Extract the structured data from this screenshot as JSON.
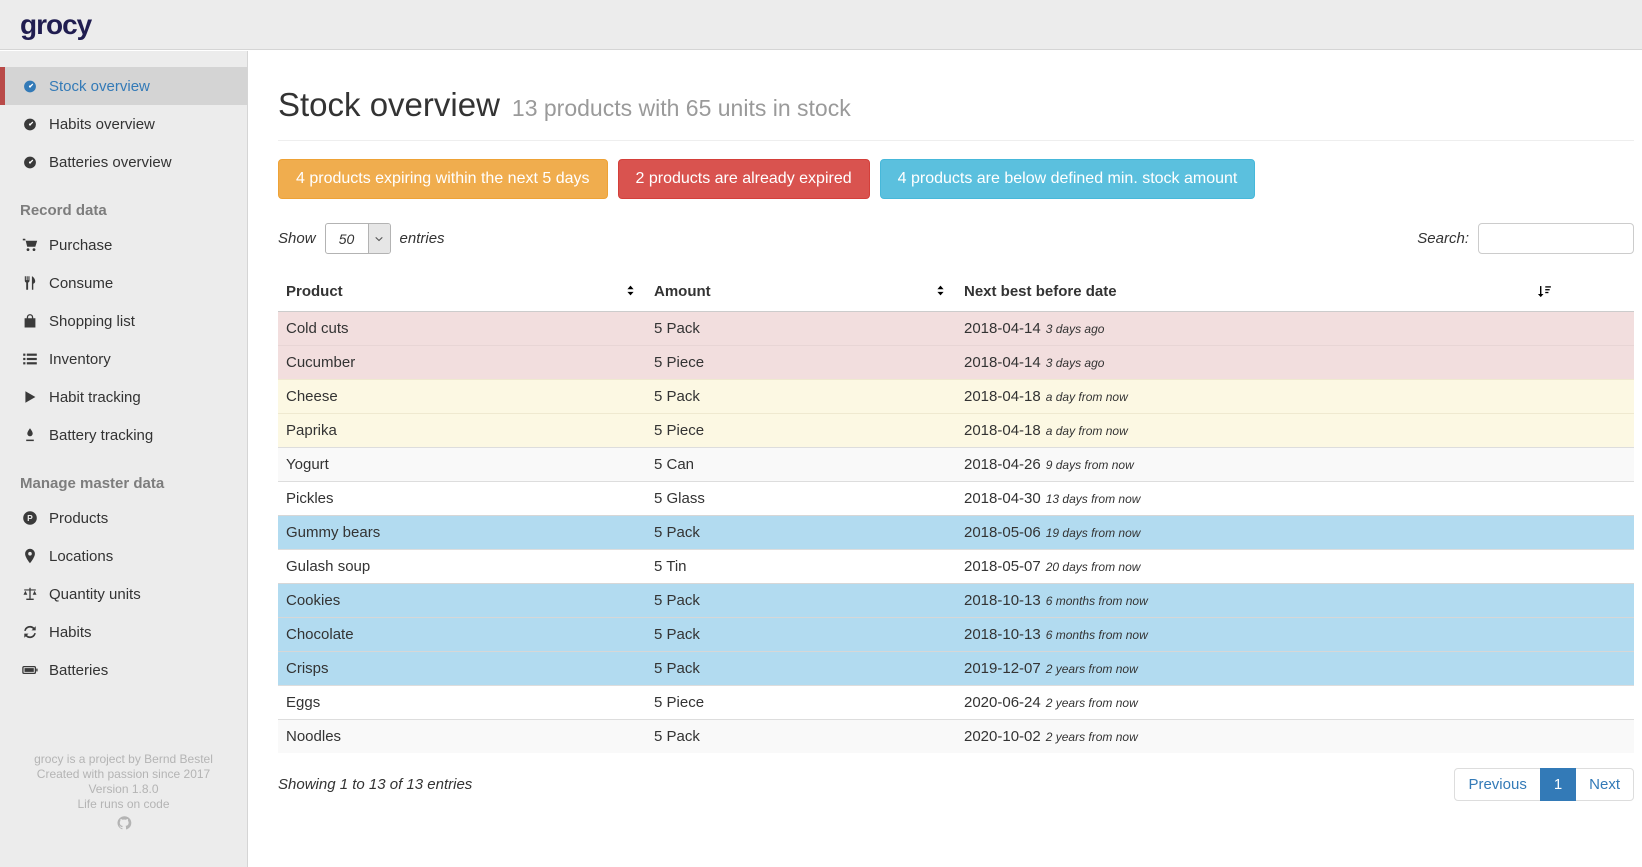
{
  "colors": {
    "link": "#337ab7",
    "warning": "#f0ad4e",
    "danger": "#d9534f",
    "info": "#5bc0de",
    "row_expired": "#f2dede",
    "row_expiring": "#fcf8e3",
    "row_below_min": "#b2dbf0",
    "active_item_border": "#b94a48"
  },
  "topbar": {
    "logo": "grocy"
  },
  "sidebar": {
    "groups": [
      {
        "header": "",
        "items": [
          {
            "label": "Stock overview",
            "icon": "tachometer",
            "active": true
          },
          {
            "label": "Habits overview",
            "icon": "tachometer",
            "active": false
          },
          {
            "label": "Batteries overview",
            "icon": "tachometer",
            "active": false
          }
        ]
      },
      {
        "header": "Record data",
        "items": [
          {
            "label": "Purchase",
            "icon": "shopping-cart",
            "active": false
          },
          {
            "label": "Consume",
            "icon": "utensils",
            "active": false
          },
          {
            "label": "Shopping list",
            "icon": "shopping-bag",
            "active": false
          },
          {
            "label": "Inventory",
            "icon": "list",
            "active": false
          },
          {
            "label": "Habit tracking",
            "icon": "play",
            "active": false
          },
          {
            "label": "Battery tracking",
            "icon": "pen",
            "active": false
          }
        ]
      },
      {
        "header": "Manage master data",
        "items": [
          {
            "label": "Products",
            "icon": "circle-p",
            "active": false
          },
          {
            "label": "Locations",
            "icon": "map-marker",
            "active": false
          },
          {
            "label": "Quantity units",
            "icon": "balance-scale",
            "active": false
          },
          {
            "label": "Habits",
            "icon": "sync",
            "active": false
          },
          {
            "label": "Batteries",
            "icon": "battery",
            "active": false
          }
        ]
      }
    ],
    "footer_lines": [
      "grocy is a project by Bernd Bestel",
      "Created with passion since 2017",
      "Version 1.8.0",
      "Life runs on code"
    ]
  },
  "page": {
    "title": "Stock overview",
    "subtitle": "13 products with 65 units in stock"
  },
  "alerts": [
    {
      "label": "4 products expiring within the next 5 days",
      "type": "warning"
    },
    {
      "label": "2 products are already expired",
      "type": "danger"
    },
    {
      "label": "4 products are below defined min. stock amount",
      "type": "info"
    }
  ],
  "controls": {
    "show_label": "Show",
    "page_size": "50",
    "entries_label": "entries",
    "search_label": "Search:",
    "search_value": ""
  },
  "table": {
    "columns": [
      {
        "label": "Product",
        "sort": "both"
      },
      {
        "label": "Amount",
        "sort": "both"
      },
      {
        "label": "Next best before date",
        "sort": "none"
      },
      {
        "label": "",
        "sort": "amount"
      }
    ],
    "rows": [
      {
        "product": "Cold cuts",
        "amount": "5 Pack",
        "date": "2018-04-14",
        "relative": "3 days ago",
        "status": "expired"
      },
      {
        "product": "Cucumber",
        "amount": "5 Piece",
        "date": "2018-04-14",
        "relative": "3 days ago",
        "status": "expired"
      },
      {
        "product": "Cheese",
        "amount": "5 Pack",
        "date": "2018-04-18",
        "relative": "a day from now",
        "status": "expiring"
      },
      {
        "product": "Paprika",
        "amount": "5 Piece",
        "date": "2018-04-18",
        "relative": "a day from now",
        "status": "expiring"
      },
      {
        "product": "Yogurt",
        "amount": "5 Can",
        "date": "2018-04-26",
        "relative": "9 days from now",
        "status": "none"
      },
      {
        "product": "Pickles",
        "amount": "5 Glass",
        "date": "2018-04-30",
        "relative": "13 days from now",
        "status": "none"
      },
      {
        "product": "Gummy bears",
        "amount": "5 Pack",
        "date": "2018-05-06",
        "relative": "19 days from now",
        "status": "below-min"
      },
      {
        "product": "Gulash soup",
        "amount": "5 Tin",
        "date": "2018-05-07",
        "relative": "20 days from now",
        "status": "none"
      },
      {
        "product": "Cookies",
        "amount": "5 Pack",
        "date": "2018-10-13",
        "relative": "6 months from now",
        "status": "below-min"
      },
      {
        "product": "Chocolate",
        "amount": "5 Pack",
        "date": "2018-10-13",
        "relative": "6 months from now",
        "status": "below-min"
      },
      {
        "product": "Crisps",
        "amount": "5 Pack",
        "date": "2019-12-07",
        "relative": "2 years from now",
        "status": "below-min"
      },
      {
        "product": "Eggs",
        "amount": "5 Piece",
        "date": "2020-06-24",
        "relative": "2 years from now",
        "status": "none"
      },
      {
        "product": "Noodles",
        "amount": "5 Pack",
        "date": "2020-10-02",
        "relative": "2 years from now",
        "status": "none"
      }
    ]
  },
  "table_footer": {
    "info": "Showing 1 to 13 of 13 entries",
    "previous_label": "Previous",
    "current_page": "1",
    "next_label": "Next"
  }
}
